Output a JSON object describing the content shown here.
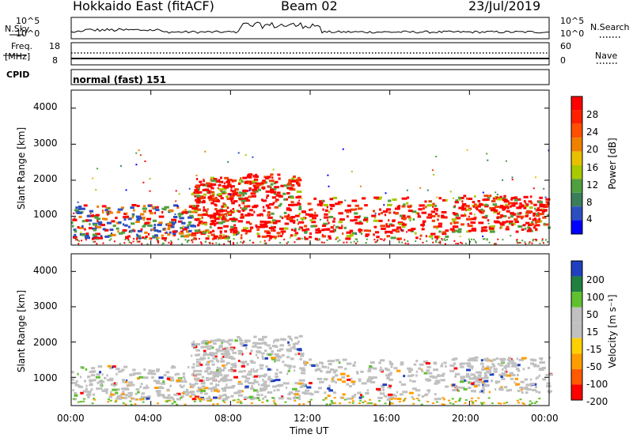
{
  "header": {
    "radar": "Hokkaido East (fitACF)",
    "beam": "Beam 02",
    "date": "23/Jul/2019"
  },
  "panels": {
    "nsky": {
      "label": "N.Sky",
      "ticks": [
        "10^5",
        "10^0"
      ]
    },
    "nsearch": {
      "label": "N.Search",
      "ticks": [
        "10^5",
        "10^0"
      ]
    },
    "freq": {
      "label_line1": "Freq.",
      "label_line2": "[MHz]",
      "ticks": [
        "18",
        "8"
      ]
    },
    "nave": {
      "label": "Nave",
      "ticks": [
        "60",
        "0"
      ]
    },
    "cpid": {
      "label": "CPID",
      "value": "normal (fast) 151"
    }
  },
  "colorbars": {
    "power": {
      "label": "Power [dB]",
      "ticks": [
        "28",
        "24",
        "20",
        "16",
        "12",
        "8",
        "4"
      ]
    },
    "velocity": {
      "label": "Velocity [m s⁻¹]",
      "ticks": [
        "200",
        "100",
        "50",
        "15",
        "-15",
        "-50",
        "-100",
        "-200"
      ]
    }
  },
  "axes": {
    "ylabel": "Slant Range [km]",
    "yticks": [
      "4000",
      "3000",
      "2000",
      "1000"
    ],
    "xticks": [
      "00:00",
      "04:00",
      "08:00",
      "12:00",
      "16:00",
      "20:00",
      "00:00"
    ],
    "xlabel": "Time UT"
  },
  "chart_data": {
    "type": "heatmap",
    "xlabel": "Time UT",
    "ylabel": "Slant Range [km]",
    "x_range_hours": [
      0,
      24
    ],
    "y_range_km": [
      200,
      4500
    ],
    "power_range_db": [
      0,
      30
    ],
    "velocity_range": [
      -250,
      250
    ],
    "power_regions": [
      {
        "t0": 0.0,
        "t1": 6.1,
        "r0": 400,
        "r1": 1350,
        "level": "mixed"
      },
      {
        "t0": 6.0,
        "t1": 8.2,
        "r0": 400,
        "r1": 2100,
        "level": "high"
      },
      {
        "t0": 8.3,
        "t1": 11.5,
        "r0": 400,
        "r1": 2200,
        "level": "high"
      },
      {
        "t0": 11.5,
        "t1": 18.8,
        "r0": 400,
        "r1": 1550,
        "level": "high"
      },
      {
        "t0": 19.0,
        "t1": 24.0,
        "r0": 600,
        "r1": 1600,
        "level": "high"
      }
    ],
    "velocity_dominant": "-15 to 15"
  }
}
